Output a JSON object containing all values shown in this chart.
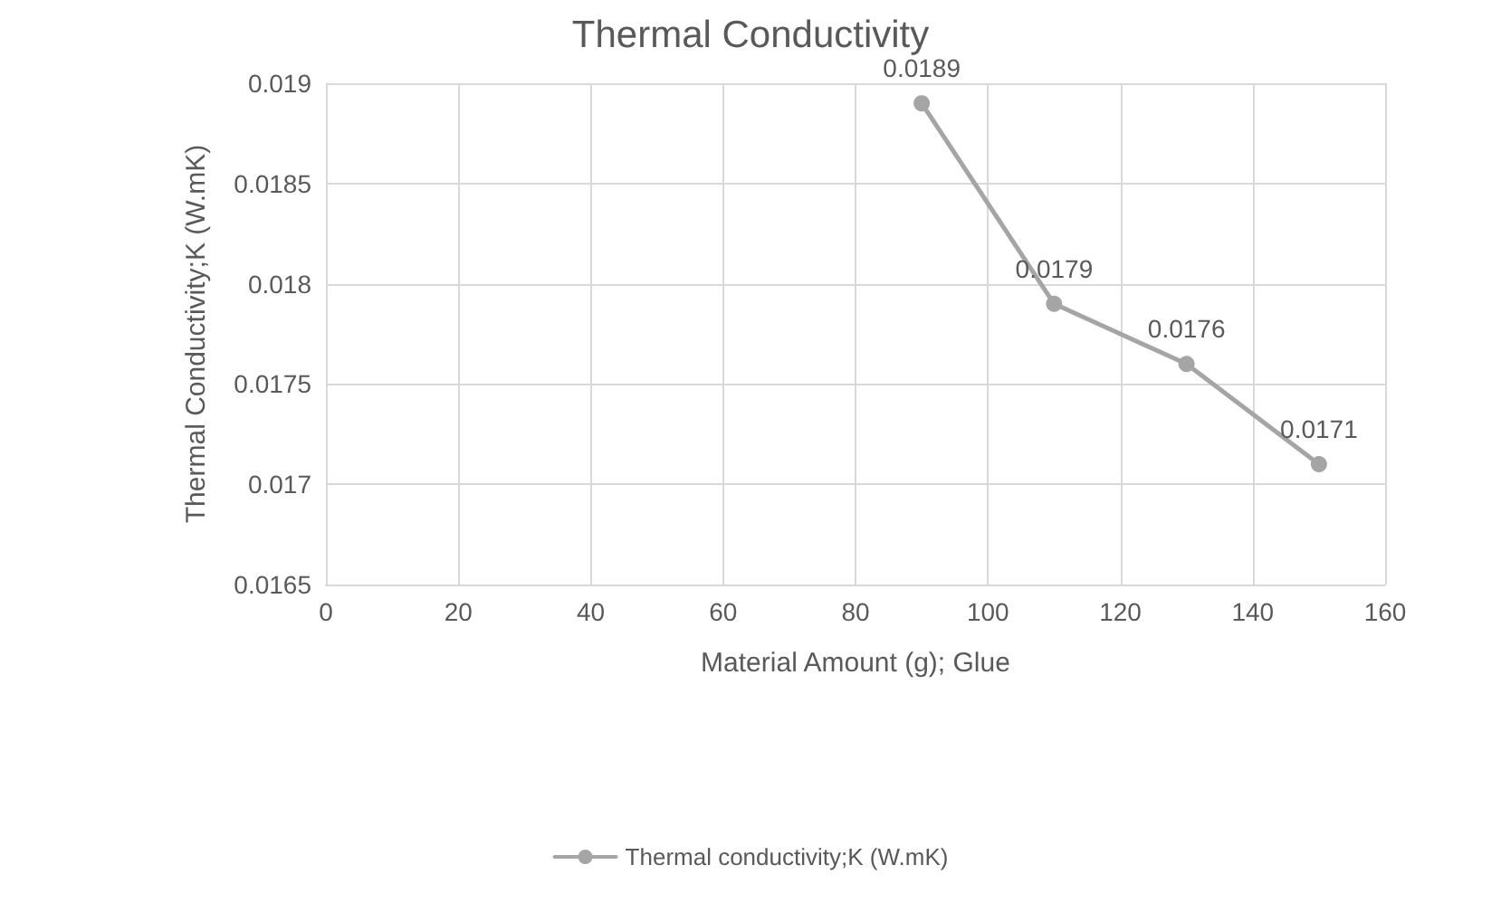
{
  "chart_data": {
    "type": "line",
    "title": "Thermal Conductivity",
    "xlabel": "Material Amount (g); Glue",
    "ylabel": "Thermal Conductivity;K (W.mK)",
    "x": [
      90,
      110,
      130,
      150
    ],
    "series": [
      {
        "name": "Thermal conductivity;K (W.mK)",
        "color": "#a5a5a5",
        "values": [
          0.0189,
          0.0179,
          0.0176,
          0.0171
        ]
      }
    ],
    "xlim": [
      0,
      160
    ],
    "xticks": [
      0,
      20,
      40,
      60,
      80,
      100,
      120,
      140,
      160
    ],
    "ylim": [
      0.0165,
      0.019
    ],
    "yticks": [
      0.0165,
      0.017,
      0.0175,
      0.018,
      0.0185,
      0.019
    ],
    "grid": true,
    "legend": "bottom",
    "marker": "circle",
    "line_style": "solid",
    "data_labels": true
  }
}
